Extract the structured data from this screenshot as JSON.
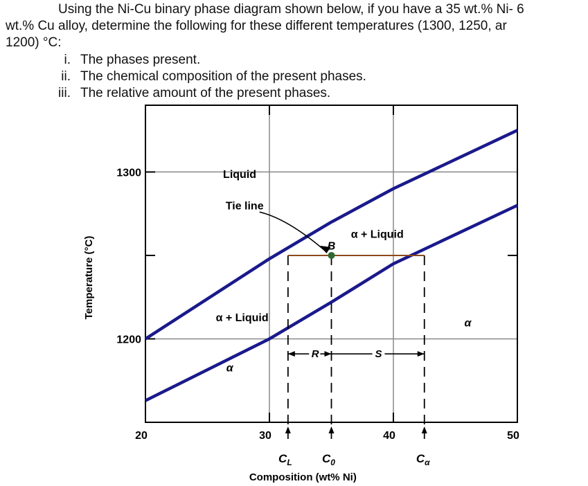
{
  "question": {
    "line1": "Using the Ni-Cu binary phase diagram shown below, if you have a 35 wt.% Ni- 6",
    "line2": "wt.% Cu alloy, determine the following for these different temperatures (1300, 1250, ar",
    "line3": "1200) °C:",
    "items": [
      {
        "num": "i.",
        "text": "The phases present."
      },
      {
        "num": "ii.",
        "text": "The chemical composition of the present phases."
      },
      {
        "num": "iii.",
        "text": "The relative amount of the present phases."
      }
    ]
  },
  "chart_data": {
    "type": "line",
    "xlabel": "Composition (wt% Ni)",
    "ylabel": "Temperature (°C)",
    "xlim": [
      20,
      50
    ],
    "ylim": [
      1150,
      1340
    ],
    "x_ticks": [
      "20",
      "30",
      "40",
      "50"
    ],
    "y_ticks": [
      "1200",
      "1300"
    ],
    "series": [
      {
        "role": "liquidus",
        "x": [
          20,
          30,
          35,
          40,
          50
        ],
        "y": [
          1200,
          1248,
          1270,
          1290,
          1325
        ]
      },
      {
        "role": "solidus",
        "x": [
          20,
          30,
          35,
          40,
          50
        ],
        "y": [
          1163,
          1200,
          1222,
          1245,
          1280
        ]
      }
    ],
    "tie_line": {
      "temperature": 1250,
      "x_start": 31.5,
      "x_end": 42.5,
      "label": "Tie line"
    },
    "point": {
      "label": "B",
      "x": 35,
      "y": 1250
    },
    "region_labels": {
      "liquid": "Liquid",
      "alpha_liquid_upper": "α + Liquid",
      "alpha_liquid_lower": "α + Liquid",
      "alpha_left": "α",
      "alpha_right": "α"
    },
    "lever": {
      "r_label": "R",
      "s_label": "S"
    },
    "composition_labels": {
      "cl": "C",
      "cl_sub": "L",
      "co": "C",
      "co_sub": "0",
      "ca": "C",
      "ca_sub": "α"
    },
    "colors": {
      "phase_lines": "#1a1a8c",
      "tie_line": "#8b4a1a",
      "point": "#2e6b2e",
      "grid": "#888888"
    }
  }
}
